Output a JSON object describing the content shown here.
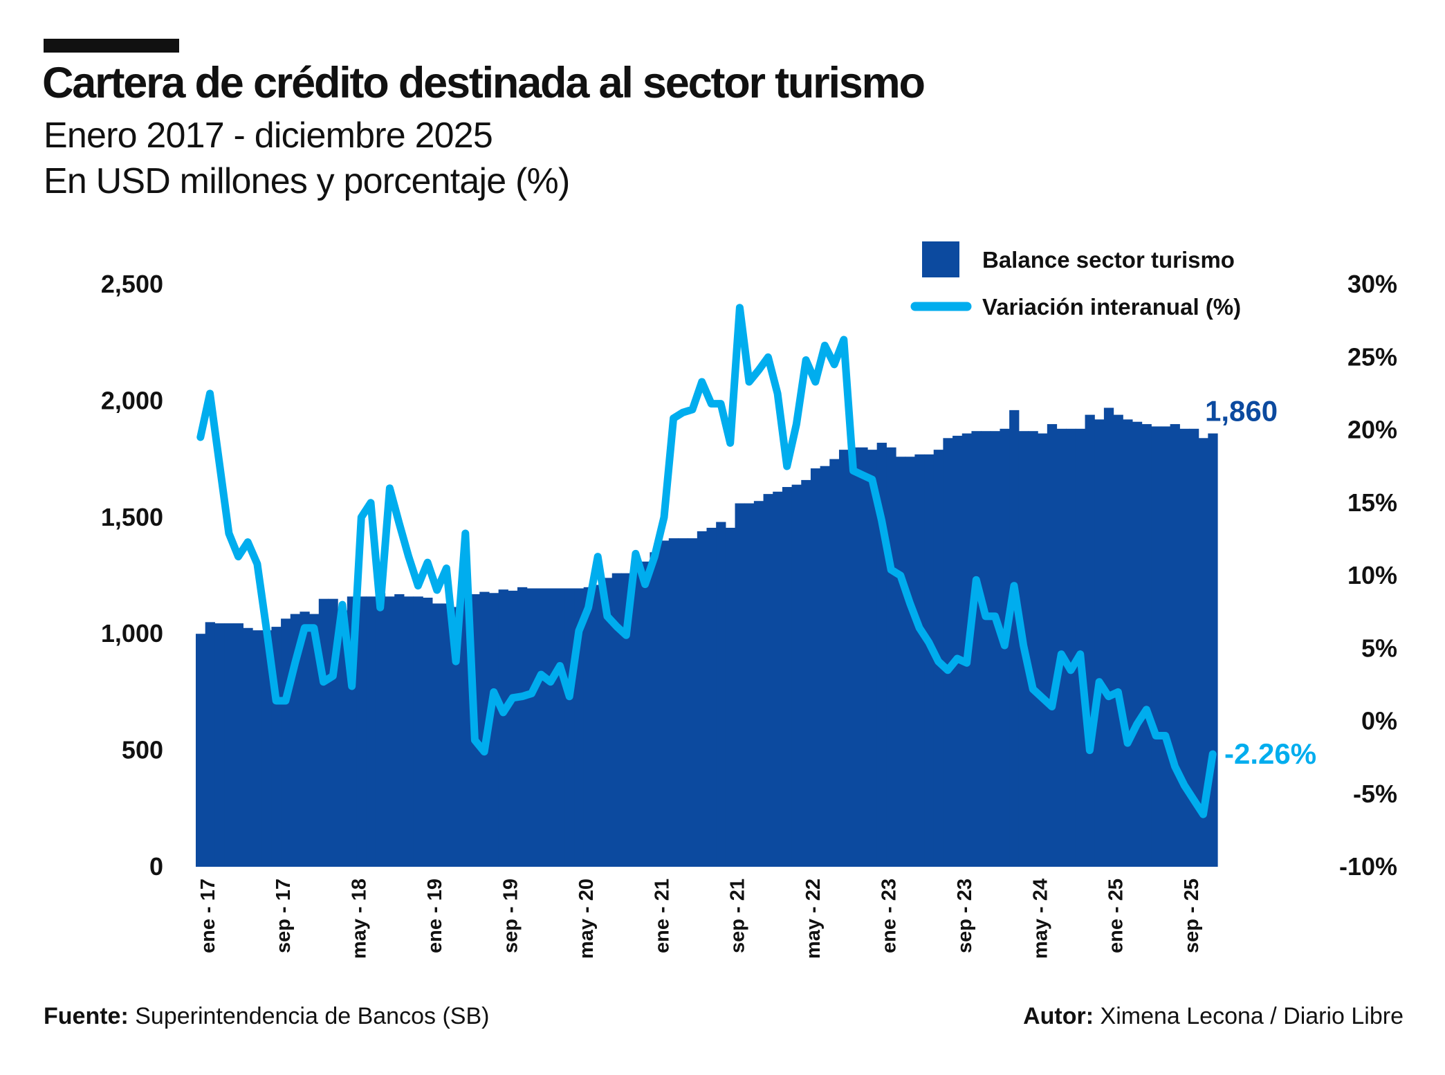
{
  "header": {
    "title": "Cartera de crédito destinada al sector turismo",
    "subtitle_1": "Enero 2017 - diciembre 2025",
    "subtitle_2": "En USD millones y porcentaje (%)"
  },
  "footer": {
    "source_label": "Fuente:",
    "source_value": "Superintendencia de Bancos (SB)",
    "author_label": "Autor:",
    "author_value": "Ximena Lecona / Diario Libre"
  },
  "colors": {
    "bar": "#0c4a9f",
    "line": "#00adee",
    "bar_label": "#0c4a9f",
    "line_label": "#00adee"
  },
  "chart_data": {
    "type": "bar+line",
    "x_start": "2017-01",
    "x_end": "2025-12",
    "x_tick_labels": [
      {
        "index": 0,
        "label": "ene - 17"
      },
      {
        "index": 8,
        "label": "sep - 17"
      },
      {
        "index": 16,
        "label": "may - 18"
      },
      {
        "index": 24,
        "label": "ene - 19"
      },
      {
        "index": 32,
        "label": "sep - 19"
      },
      {
        "index": 40,
        "label": "may - 20"
      },
      {
        "index": 48,
        "label": "ene - 21"
      },
      {
        "index": 56,
        "label": "sep - 21"
      },
      {
        "index": 64,
        "label": "may - 22"
      },
      {
        "index": 72,
        "label": "ene - 23"
      },
      {
        "index": 80,
        "label": "sep - 23"
      },
      {
        "index": 88,
        "label": "may - 24"
      },
      {
        "index": 96,
        "label": "ene - 25"
      },
      {
        "index": 104,
        "label": "sep - 25"
      }
    ],
    "left_axis": {
      "ylim": [
        0,
        2500
      ],
      "ticks": [
        {
          "v": 0,
          "label": "0"
        },
        {
          "v": 500,
          "label": "500"
        },
        {
          "v": 1000,
          "label": "1,000"
        },
        {
          "v": 1500,
          "label": "1,500"
        },
        {
          "v": 2000,
          "label": "2,000"
        },
        {
          "v": 2500,
          "label": "2,500"
        }
      ]
    },
    "right_axis": {
      "ylim": [
        -10,
        30
      ],
      "ticks": [
        {
          "v": -10,
          "label": "-10%"
        },
        {
          "v": -5,
          "label": "-5%"
        },
        {
          "v": 0,
          "label": "0%"
        },
        {
          "v": 5,
          "label": "5%"
        },
        {
          "v": 10,
          "label": "10%"
        },
        {
          "v": 15,
          "label": "15%"
        },
        {
          "v": 20,
          "label": "20%"
        },
        {
          "v": 25,
          "label": "25%"
        },
        {
          "v": 30,
          "label": "30%"
        }
      ]
    },
    "legend": {
      "position": "top-right",
      "bar_label": "Balance sector turismo",
      "line_label": "Variación interanual (%)"
    },
    "series": [
      {
        "name": "Balance sector turismo",
        "type": "bar",
        "axis": "left",
        "values": [
          1000,
          1050,
          1045,
          1045,
          1045,
          1025,
          1015,
          1015,
          1030,
          1065,
          1085,
          1095,
          1085,
          1150,
          1150,
          1100,
          1160,
          1160,
          1160,
          1175,
          1160,
          1170,
          1160,
          1160,
          1155,
          1130,
          1130,
          1115,
          1160,
          1170,
          1180,
          1175,
          1190,
          1185,
          1200,
          1195,
          1195,
          1195,
          1195,
          1195,
          1195,
          1200,
          1210,
          1240,
          1260,
          1260,
          1310,
          1310,
          1350,
          1400,
          1410,
          1410,
          1410,
          1440,
          1455,
          1480,
          1455,
          1560,
          1560,
          1570,
          1600,
          1610,
          1630,
          1640,
          1660,
          1710,
          1720,
          1750,
          1790,
          1800,
          1800,
          1790,
          1820,
          1800,
          1760,
          1760,
          1770,
          1770,
          1790,
          1840,
          1850,
          1860,
          1870,
          1870,
          1870,
          1880,
          1960,
          1870,
          1870,
          1860,
          1900,
          1880,
          1880,
          1880,
          1940,
          1920,
          1970,
          1940,
          1920,
          1910,
          1900,
          1890,
          1890,
          1900,
          1880,
          1880,
          1840,
          1860
        ]
      },
      {
        "name": "Variación interanual (%)",
        "type": "line",
        "axis": "right",
        "values": [
          19.5,
          22.5,
          17.7,
          12.9,
          11.3,
          12.3,
          10.8,
          6.2,
          1.4,
          1.4,
          4.0,
          6.4,
          6.4,
          2.7,
          3.1,
          8.0,
          2.4,
          14.0,
          15.0,
          7.8,
          16.0,
          13.6,
          11.3,
          9.3,
          10.9,
          9.0,
          10.5,
          4.1,
          12.9,
          -1.3,
          -2.1,
          2.0,
          0.6,
          1.6,
          1.7,
          1.9,
          3.2,
          2.7,
          3.8,
          1.7,
          6.2,
          7.8,
          11.3,
          7.2,
          6.5,
          5.9,
          11.5,
          9.4,
          11.3,
          14.0,
          20.8,
          21.2,
          21.4,
          23.3,
          21.8,
          21.8,
          19.1,
          28.4,
          23.3,
          24.1,
          25.0,
          22.5,
          17.5,
          20.4,
          24.8,
          23.3,
          25.8,
          24.5,
          26.2,
          17.2,
          16.9,
          16.6,
          13.8,
          10.4,
          10.0,
          8.1,
          6.4,
          5.4,
          4.1,
          3.5,
          4.3,
          4.0,
          9.7,
          7.2,
          7.2,
          5.2,
          9.3,
          5.2,
          2.2,
          1.6,
          1.0,
          4.6,
          3.5,
          4.6,
          -2.0,
          2.7,
          1.7,
          2.0,
          -1.5,
          -0.2,
          0.8,
          -1.0,
          -1.0,
          -3.1,
          -4.4,
          -5.4,
          -6.4,
          -2.26
        ]
      }
    ],
    "annotations": {
      "last_bar_label": "1,860",
      "last_line_label": "-2.26%"
    }
  }
}
